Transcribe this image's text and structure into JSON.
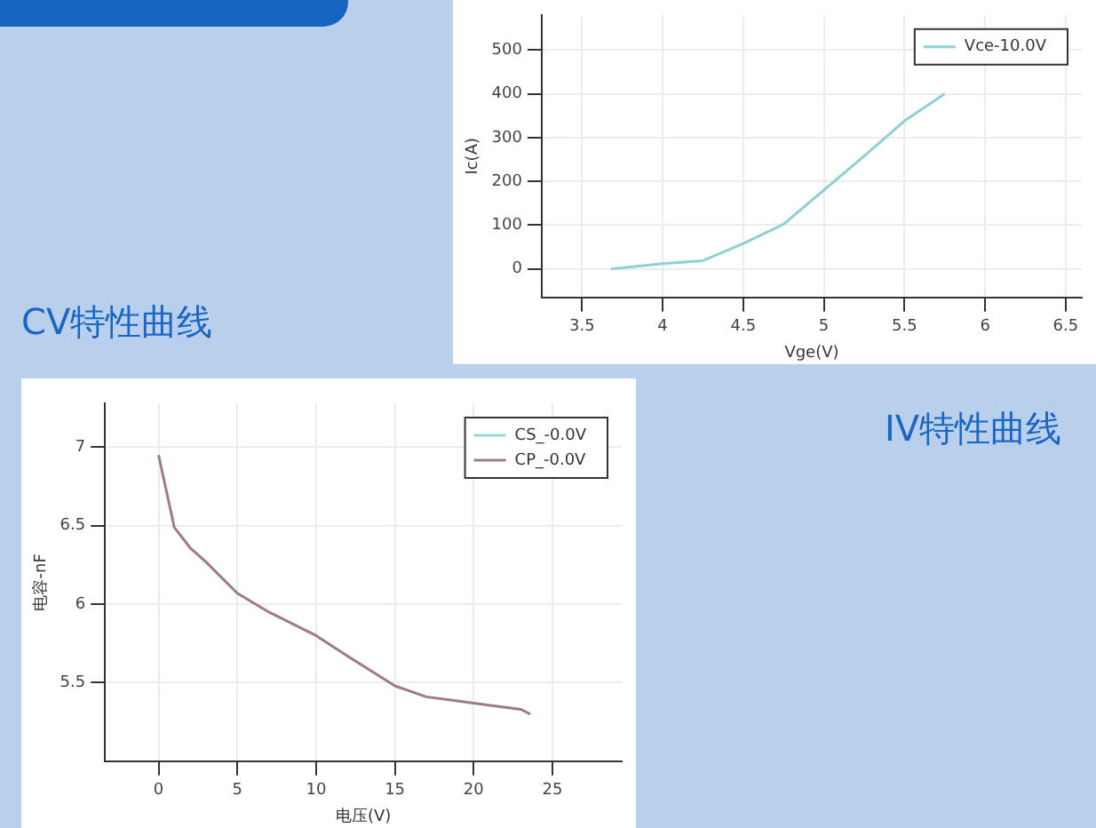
{
  "chart_data": [
    {
      "type": "line",
      "title": "IV特性曲线",
      "xlabel": "Vge(V)",
      "ylabel": "Ic(A)",
      "xlim": [
        3.25,
        6.6
      ],
      "ylim": [
        -65,
        580
      ],
      "xticks": [
        3.5,
        4,
        4.5,
        5,
        5.5,
        6,
        6.5
      ],
      "yticks": [
        0,
        100,
        200,
        300,
        400,
        500
      ],
      "grid": true,
      "legend": "top right",
      "marker": "none",
      "series": [
        {
          "name": "Vce-10.0V",
          "color": "#8fd0d4",
          "x": [
            3.68,
            4.0,
            4.25,
            4.5,
            4.75,
            5.0,
            5.25,
            5.5,
            5.75
          ],
          "values": [
            0,
            12,
            19,
            58,
            102,
            180,
            258,
            338,
            400
          ]
        }
      ]
    },
    {
      "type": "line",
      "title": "CV特性曲线",
      "xlabel": "电压(V)",
      "ylabel": "电容-nF",
      "xlim": [
        -3.4,
        29.4
      ],
      "ylim": [
        5.0,
        7.28
      ],
      "xticks": [
        0,
        5,
        10,
        15,
        20,
        25
      ],
      "yticks": [
        5.5,
        6,
        6.5,
        7
      ],
      "grid": true,
      "legend": "top right",
      "marker": "none",
      "series": [
        {
          "name": "CS_-0.0V",
          "color": "#8fe0d4"
        },
        {
          "name": "CP_-0.0V",
          "color": "#a07a84",
          "x": [
            0,
            1,
            2,
            3,
            5,
            7,
            10,
            12,
            15,
            17,
            20,
            23,
            23.6
          ],
          "values": [
            6.95,
            6.49,
            6.36,
            6.27,
            6.07,
            5.95,
            5.8,
            5.67,
            5.48,
            5.41,
            5.37,
            5.33,
            5.3
          ]
        }
      ]
    }
  ]
}
